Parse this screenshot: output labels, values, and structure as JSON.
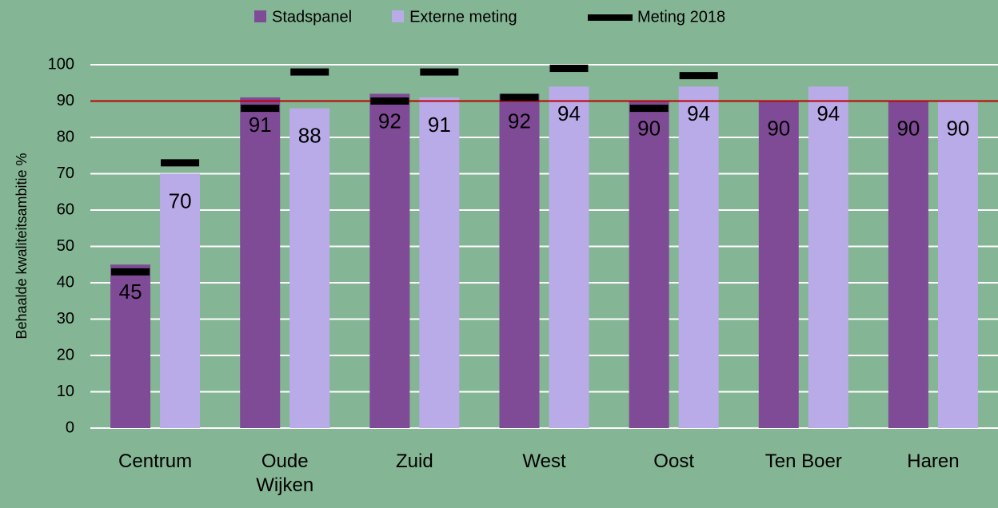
{
  "chart_data": {
    "type": "bar",
    "y_label": "Behaalde kwaliteitsambitie %",
    "categories": [
      "Centrum",
      "Oude Wijken",
      "Zuid",
      "West",
      "Oost",
      "Ten Boer",
      "Haren"
    ],
    "series": [
      {
        "name": "Stadspanel",
        "color": "#7f4b96",
        "values": [
          45,
          91,
          92,
          92,
          90,
          90,
          90
        ]
      },
      {
        "name": "Externe meting",
        "color": "#b9abe8",
        "values": [
          70,
          88,
          91,
          94,
          94,
          94,
          90
        ]
      }
    ],
    "markers": {
      "name": "Meting 2018",
      "color": "#000000",
      "values": [
        [
          43,
          73
        ],
        [
          88,
          98
        ],
        [
          90,
          98
        ],
        [
          91,
          99
        ],
        [
          88,
          97
        ],
        [
          null,
          null
        ],
        [
          null,
          null
        ]
      ]
    },
    "reference_line": {
      "value": 90,
      "color": "#c00000"
    },
    "ylim": [
      0,
      100
    ],
    "yticks": [
      0,
      10,
      20,
      30,
      40,
      50,
      60,
      70,
      80,
      90,
      100
    ],
    "grid": true
  }
}
